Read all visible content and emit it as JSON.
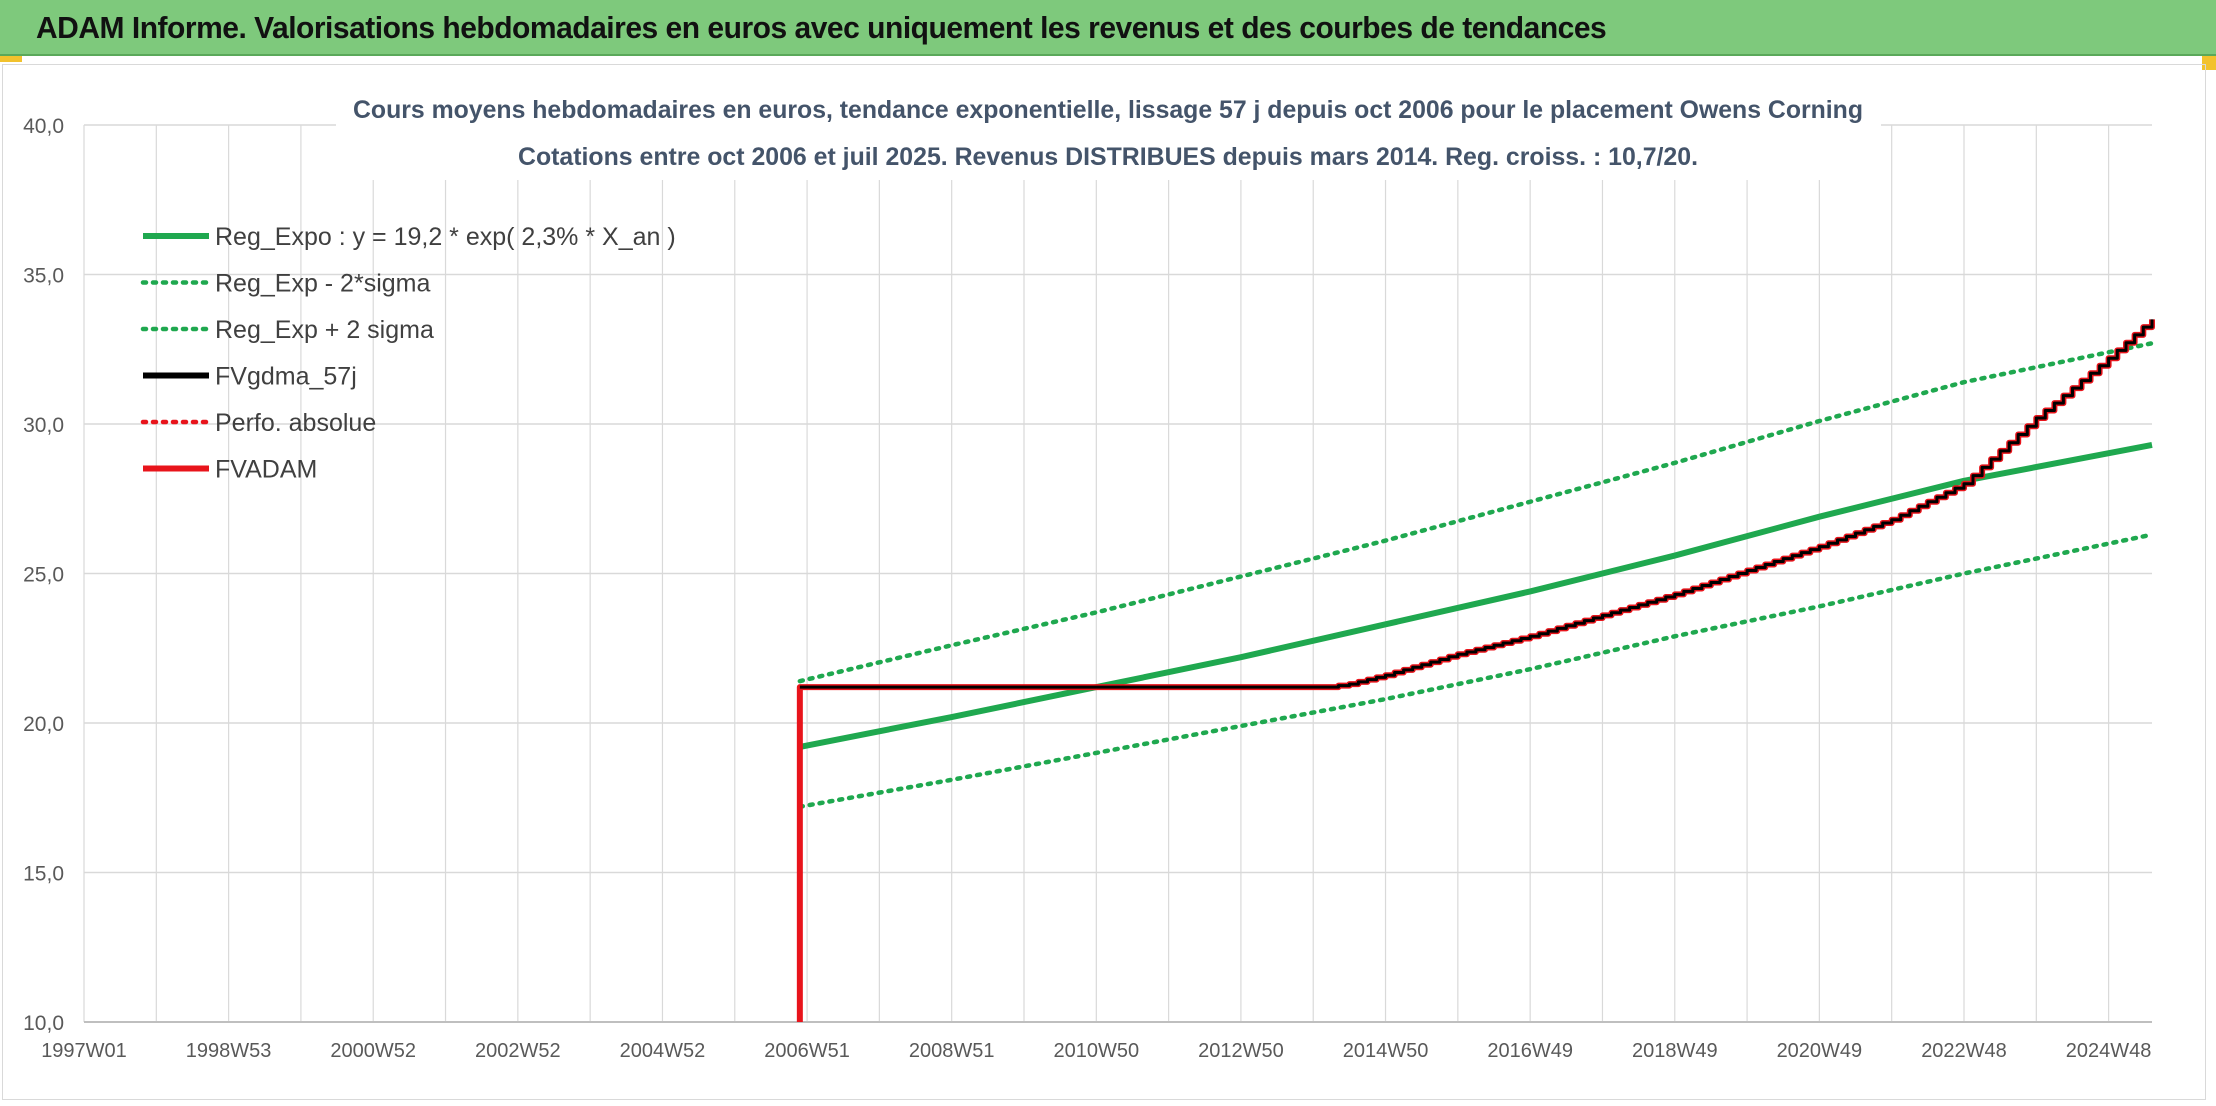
{
  "banner": {
    "title": "ADAM Informe. Valorisations hebdomadaires en euros avec uniquement les revenus et des courbes de tendances"
  },
  "colors": {
    "banner_bg": "#7ec97c",
    "regression": "#1fa84f",
    "fvgdma": "#000000",
    "fvadam": "#e8141b",
    "perfo": "#e8141b",
    "grid": "#d9d9d9"
  },
  "chart_data": {
    "type": "line",
    "title": "Cours moyens hebdomadaires en euros, tendance exponentielle, lissage 57 j depuis oct 2006 pour le placement Owens Corning",
    "subtitle": "Cotations entre oct 2006 et juil 2025. Revenus DISTRIBUES depuis mars 2014. Reg. croiss. : 10,7/20.",
    "xlabel": "",
    "ylabel": "",
    "x_axis_type": "year",
    "xlim": [
      1997.0,
      2025.6
    ],
    "ylim": [
      10,
      40
    ],
    "yticks": [
      10,
      15,
      20,
      25,
      30,
      35,
      40
    ],
    "ytick_labels": [
      "10,0",
      "15,0",
      "20,0",
      "25,0",
      "30,0",
      "35,0",
      "40,0"
    ],
    "xticks": [
      1997.0,
      1999.0,
      2001.0,
      2003.0,
      2005.0,
      2007.0,
      2009.0,
      2011.0,
      2013.0,
      2015.0,
      2017.0,
      2019.0,
      2021.0,
      2023.0,
      2025.0
    ],
    "xtick_labels": [
      "1997W01",
      "1998W53",
      "2000W52",
      "2002W52",
      "2004W52",
      "2006W51",
      "2008W51",
      "2010W50",
      "2012W50",
      "2014W50",
      "2016W49",
      "2018W49",
      "2020W49",
      "2022W48",
      "2024W48"
    ],
    "grid": true,
    "legend_position": "top-left",
    "series": [
      {
        "name": "Reg_Expo : y = 19,2 * exp( 2,3% *  X_an )",
        "style": "solid",
        "color": "#1fa84f",
        "x": [
          2006.9,
          2009.0,
          2011.0,
          2013.0,
          2015.0,
          2017.0,
          2019.0,
          2021.0,
          2023.0,
          2025.6
        ],
        "y": [
          19.2,
          20.2,
          21.2,
          22.2,
          23.3,
          24.4,
          25.6,
          26.9,
          28.1,
          29.3
        ]
      },
      {
        "name": "Reg_Exp - 2*sigma",
        "style": "dotted",
        "color": "#1fa84f",
        "x": [
          2006.9,
          2009.0,
          2011.0,
          2013.0,
          2015.0,
          2017.0,
          2019.0,
          2021.0,
          2023.0,
          2025.6
        ],
        "y": [
          17.2,
          18.1,
          19.0,
          19.9,
          20.8,
          21.8,
          22.9,
          23.9,
          25.0,
          26.3
        ]
      },
      {
        "name": "Reg_Exp + 2 sigma",
        "style": "dotted",
        "color": "#1fa84f",
        "x": [
          2006.9,
          2009.0,
          2011.0,
          2013.0,
          2015.0,
          2017.0,
          2019.0,
          2021.0,
          2023.0,
          2025.6
        ],
        "y": [
          21.4,
          22.6,
          23.7,
          24.9,
          26.1,
          27.4,
          28.7,
          30.1,
          31.4,
          32.7
        ]
      },
      {
        "name": "FVgdma_57j",
        "style": "solid",
        "color": "#000000",
        "x": [
          2006.9,
          2014.2,
          2014.5,
          2015.0,
          2016.0,
          2017.0,
          2018.0,
          2019.0,
          2020.0,
          2021.0,
          2022.0,
          2022.5,
          2023.0,
          2023.5,
          2024.0,
          2024.5,
          2025.0,
          2025.6
        ],
        "y": [
          21.2,
          21.2,
          21.3,
          21.6,
          22.3,
          22.9,
          23.6,
          24.3,
          25.1,
          25.9,
          26.8,
          27.4,
          28.0,
          29.1,
          30.2,
          31.2,
          32.2,
          33.5
        ]
      },
      {
        "name": "Perfo. absolue",
        "style": "dotted",
        "color": "#e8141b",
        "x": [],
        "y": []
      },
      {
        "name": "FVADAM",
        "style": "solid",
        "color": "#e8141b",
        "x": [
          2006.9,
          2006.9,
          2014.2,
          2014.5,
          2015.0,
          2016.0,
          2017.0,
          2018.0,
          2019.0,
          2020.0,
          2021.0,
          2022.0,
          2022.5,
          2023.0,
          2023.5,
          2024.0,
          2024.5,
          2025.0,
          2025.6
        ],
        "y": [
          10.0,
          21.2,
          21.2,
          21.3,
          21.6,
          22.3,
          22.9,
          23.6,
          24.3,
          25.1,
          25.9,
          26.8,
          27.4,
          28.0,
          29.1,
          30.2,
          31.2,
          32.2,
          33.5
        ]
      }
    ]
  }
}
